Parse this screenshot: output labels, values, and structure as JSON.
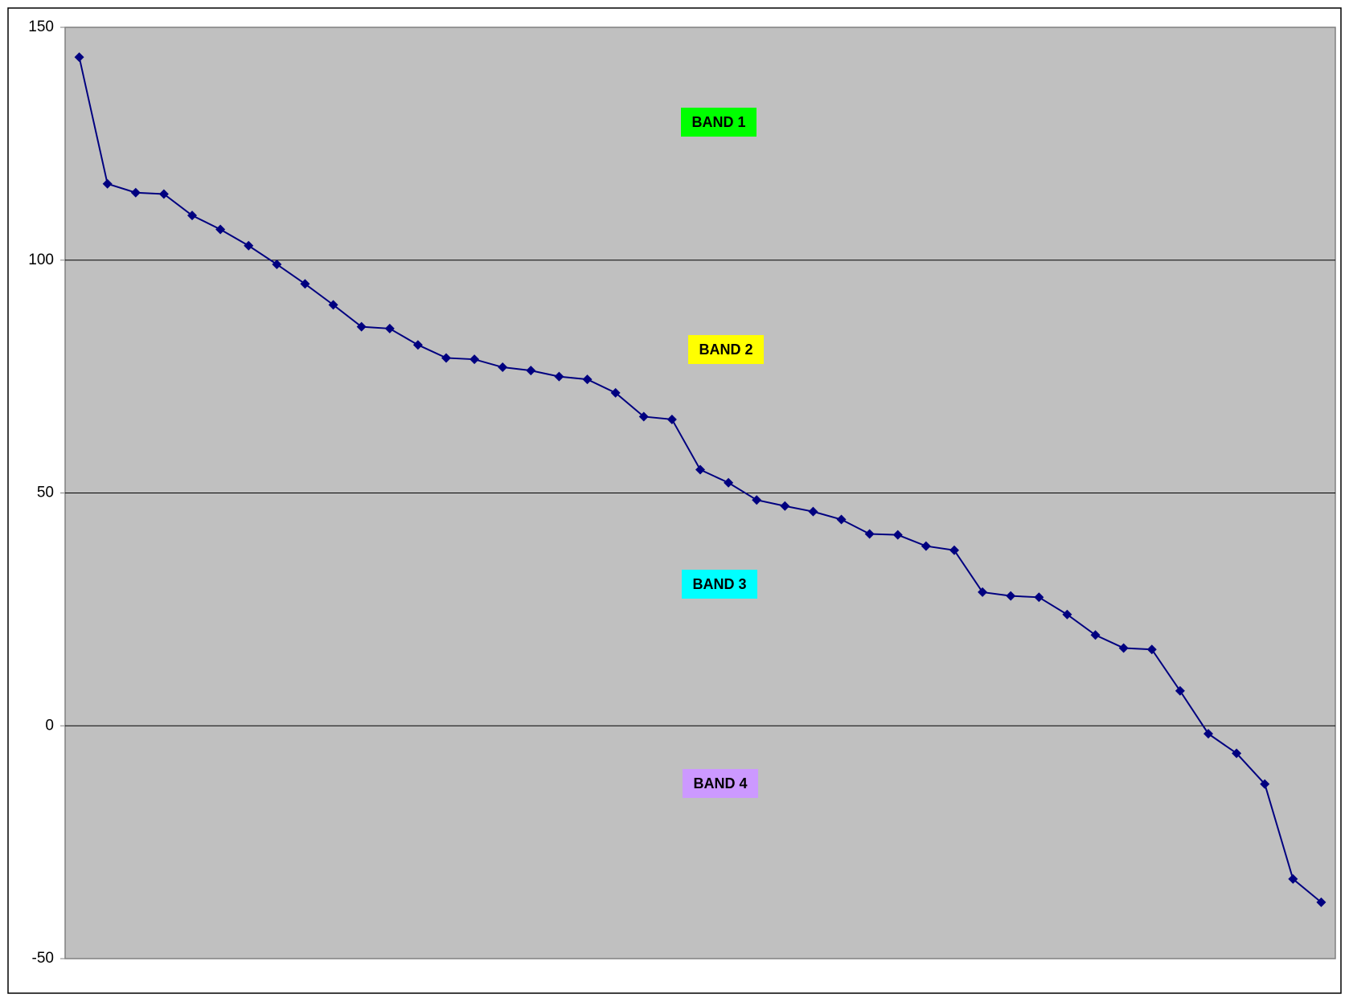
{
  "chart_data": {
    "type": "line",
    "categories": [
      null,
      null,
      null,
      null,
      null,
      null,
      null,
      null,
      null,
      null,
      null,
      null,
      null,
      null,
      null,
      null,
      null,
      null,
      null,
      null,
      null,
      null,
      null,
      null,
      null,
      null,
      null,
      null,
      null,
      null,
      null,
      null,
      null,
      null,
      null,
      null,
      null,
      null,
      null,
      null,
      null,
      null,
      null,
      null,
      null
    ],
    "series": [
      {
        "color": "#000080",
        "values": [
          143.6,
          116.4,
          114.5,
          114.2,
          109.6,
          106.6,
          103.1,
          99.1,
          94.9,
          90.4,
          85.7,
          85.3,
          81.8,
          79.0,
          78.7,
          77.0,
          76.3,
          75.0,
          74.4,
          71.5,
          66.4,
          65.8,
          55.0,
          52.2,
          48.5,
          47.2,
          46.0,
          44.3,
          41.2,
          41.0,
          38.6,
          37.7,
          28.7,
          27.9,
          27.6,
          23.9,
          19.5,
          16.7,
          16.4,
          7.5,
          -1.7,
          -5.9,
          -12.5,
          -32.9,
          -37.9
        ]
      }
    ],
    "ylim": [
      -50,
      150
    ],
    "yticks": [
      -50,
      0,
      50,
      100,
      150
    ],
    "grid": true,
    "plot_background": "#c0c0c0",
    "annotations": [
      {
        "text": "BAND 1",
        "color": "#00ff00"
      },
      {
        "text": "BAND 2",
        "color": "#ffff00"
      },
      {
        "text": "BAND 3",
        "color": "#00ffff"
      },
      {
        "text": "BAND 4",
        "color": "#cc99ff"
      }
    ]
  }
}
